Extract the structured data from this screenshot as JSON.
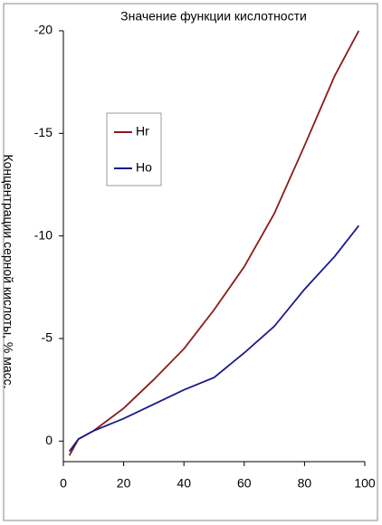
{
  "chart_data": {
    "type": "line",
    "title": "Значение функции кислотности",
    "y_label": "Концентрации серной кислоты, % масс.",
    "x": [
      2,
      5,
      10,
      20,
      30,
      40,
      50,
      60,
      70,
      80,
      90,
      98
    ],
    "series": [
      {
        "name": "Hr",
        "color": "#8b1a1a",
        "values": [
          0.7,
          -0.1,
          -0.5,
          -1.6,
          -3.0,
          -4.5,
          -6.4,
          -8.5,
          -11.1,
          -14.4,
          -17.8,
          -20
        ]
      },
      {
        "name": "Ho",
        "color": "#1a1a8b",
        "values": [
          0.5,
          -0.1,
          -0.5,
          -1.1,
          -1.8,
          -2.5,
          -3.1,
          -4.3,
          -5.6,
          -7.4,
          -9.0,
          -10.5
        ]
      }
    ],
    "xlim": [
      0,
      100
    ],
    "xticks": [
      0,
      20,
      40,
      60,
      80,
      100
    ],
    "ylim": [
      1,
      -20
    ],
    "yticks": [
      0,
      -5,
      -10,
      -15,
      -20
    ]
  }
}
